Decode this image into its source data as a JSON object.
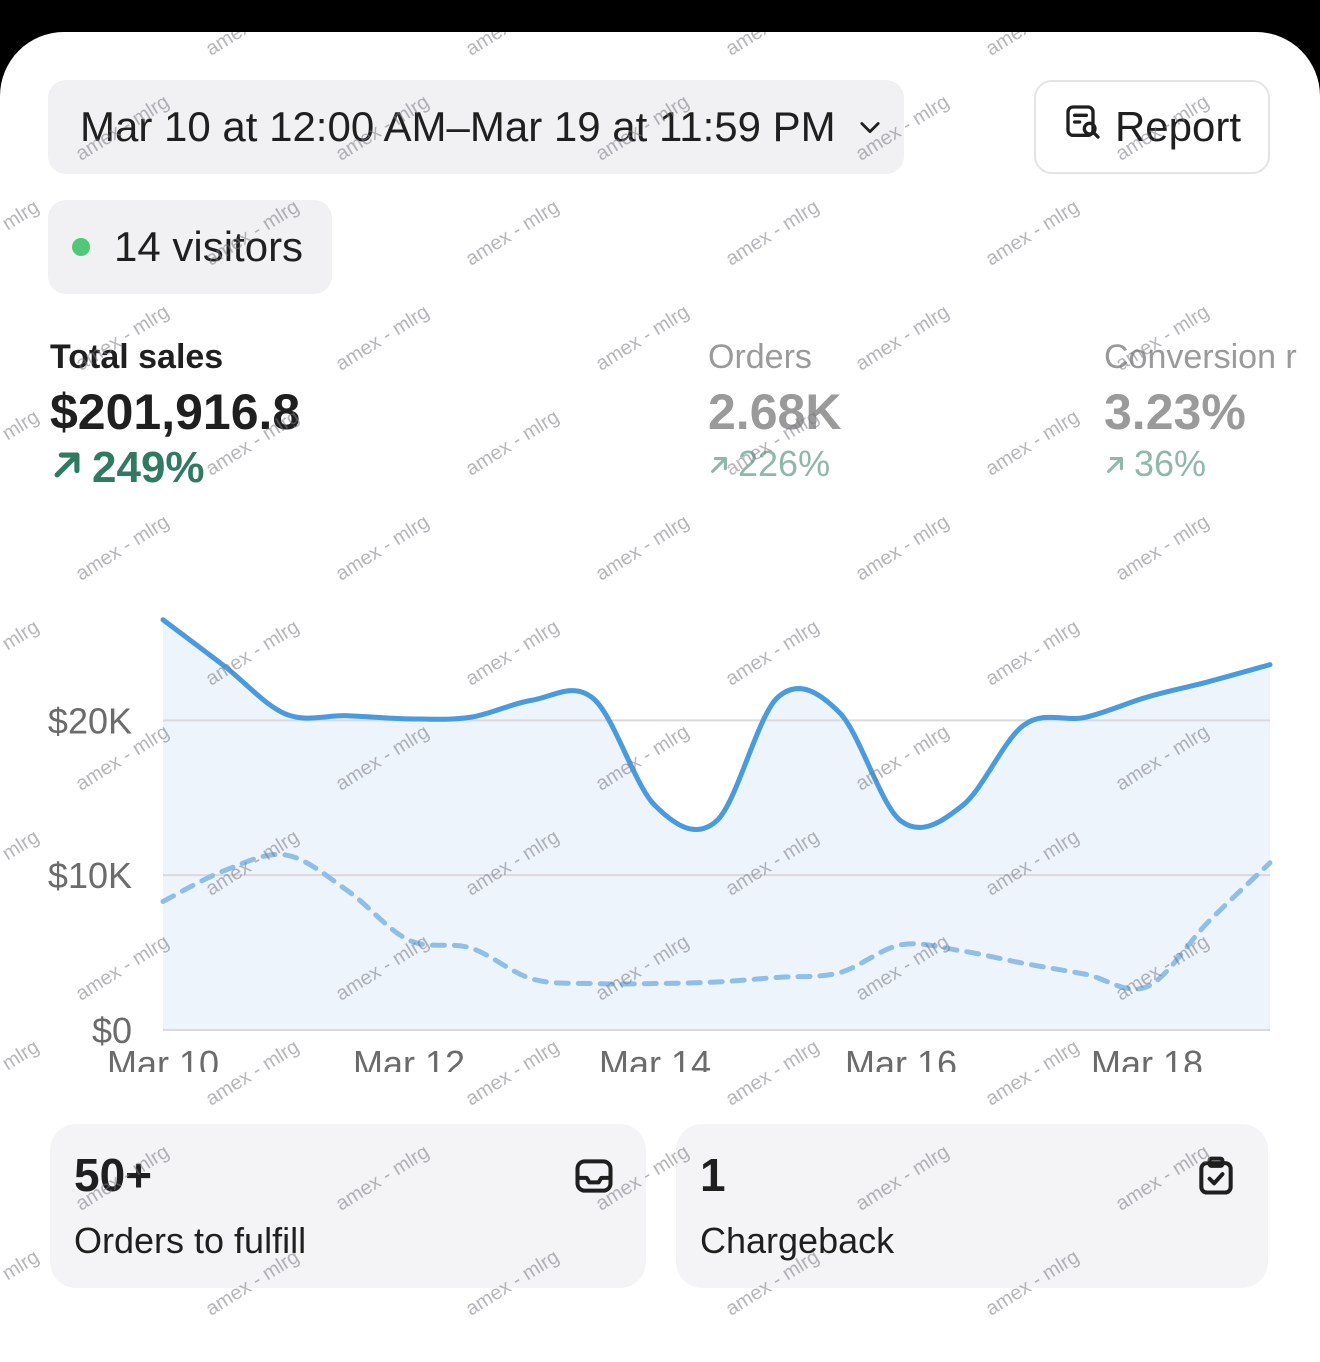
{
  "date_range": {
    "label": "Mar 10 at 12:00 AM–Mar 19 at 11:59 PM"
  },
  "report": {
    "label": "Report"
  },
  "visitors": {
    "label": "14 visitors"
  },
  "metrics": {
    "total_sales": {
      "label": "Total sales",
      "value": "$201,916.8",
      "delta": "249%"
    },
    "orders": {
      "label": "Orders",
      "value": "2.68K",
      "delta": "226%"
    },
    "conversion": {
      "label": "Conversion r",
      "value": "3.23%",
      "delta": "36%"
    }
  },
  "chart_data": {
    "type": "line",
    "x": [
      "Mar 10",
      "Mar 10.5",
      "Mar 11",
      "Mar 11.5",
      "Mar 12",
      "Mar 12.5",
      "Mar 13",
      "Mar 13.5",
      "Mar 14",
      "Mar 14.5",
      "Mar 15",
      "Mar 15.5",
      "Mar 16",
      "Mar 16.5",
      "Mar 17",
      "Mar 17.5",
      "Mar 18",
      "Mar 18.5",
      "Mar 19"
    ],
    "x_ticks": [
      "Mar 10",
      "Mar 12",
      "Mar 14",
      "Mar 16",
      "Mar 18"
    ],
    "y_ticks": [
      "$0",
      "$10K",
      "$20K"
    ],
    "ylim": [
      0,
      27000
    ],
    "series": [
      {
        "values": [
          26500,
          23500,
          20400,
          20300,
          20100,
          20200,
          21300,
          21400,
          14500,
          13500,
          21500,
          20500,
          13500,
          14500,
          19700,
          20200,
          21500,
          22500,
          23600
        ]
      },
      {
        "values": [
          8300,
          10300,
          11300,
          9000,
          5800,
          5300,
          3300,
          3000,
          3000,
          3100,
          3400,
          3700,
          5500,
          5100,
          4300,
          3600,
          2800,
          7000,
          10800
        ]
      }
    ],
    "colors": {
      "current": "#4a9ade",
      "comparison": "#8fbfe6",
      "grid": "#d9d9de",
      "area": "#eef4fc"
    }
  },
  "tiles": [
    {
      "num": "50+",
      "caption": "Orders to fulfill"
    },
    {
      "num": "1",
      "caption": "Chargeback"
    }
  ],
  "watermark": "amex - mlrg"
}
